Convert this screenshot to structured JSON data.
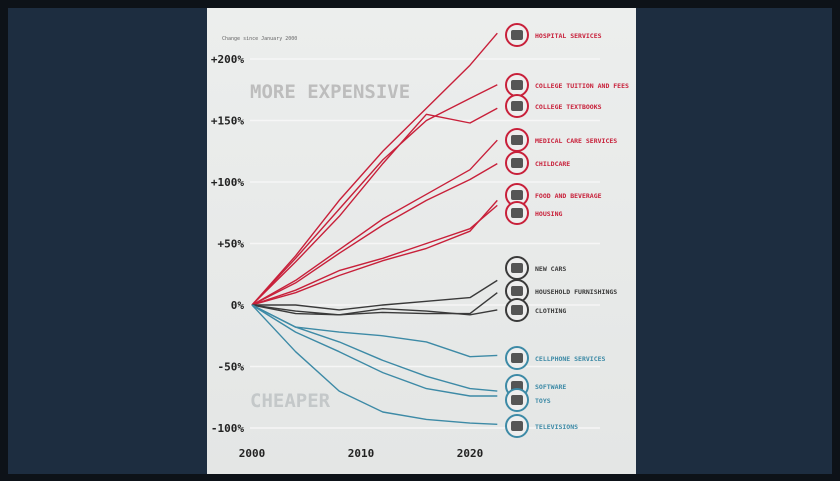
{
  "chart_data": {
    "type": "line",
    "note": "Change since January 2000",
    "annotations": {
      "top": "MORE EXPENSIVE",
      "bottom": "CHEAPER"
    },
    "ylim": [
      -100,
      225
    ],
    "yticks": [
      {
        "v": 200,
        "label": "+200%"
      },
      {
        "v": 150,
        "label": "+150%"
      },
      {
        "v": 100,
        "label": "+100%"
      },
      {
        "v": 50,
        "label": "+50%"
      },
      {
        "v": 0,
        "label": "0%"
      },
      {
        "v": -50,
        "label": "-50%"
      },
      {
        "v": -100,
        "label": "-100%"
      }
    ],
    "xticks": [
      {
        "v": 2000,
        "label": "2000"
      },
      {
        "v": 2010,
        "label": "2010"
      },
      {
        "v": 2020,
        "label": "2020"
      }
    ],
    "x": [
      2000,
      2004,
      2008,
      2012,
      2016,
      2020,
      2022.5
    ],
    "colors": {
      "up": "#c8203a",
      "flat": "#3a3a3a",
      "down": "#3d8aa6"
    },
    "series": [
      {
        "name": "HOSPITAL SERVICES",
        "group": "up",
        "icon": "hospital-icon",
        "values": [
          0,
          40,
          85,
          125,
          160,
          195,
          221
        ]
      },
      {
        "name": "COLLEGE TUITION AND FEES",
        "group": "up",
        "icon": "graduation-cap-icon",
        "values": [
          0,
          38,
          78,
          118,
          150,
          168,
          179
        ]
      },
      {
        "name": "COLLEGE TEXTBOOKS",
        "group": "up",
        "icon": "books-icon",
        "values": [
          0,
          35,
          72,
          115,
          155,
          148,
          160
        ]
      },
      {
        "name": "MEDICAL CARE SERVICES",
        "group": "up",
        "icon": "camera-icon",
        "values": [
          0,
          20,
          45,
          70,
          90,
          110,
          134
        ]
      },
      {
        "name": "CHILDCARE",
        "group": "up",
        "icon": "stroller-icon",
        "values": [
          0,
          18,
          42,
          65,
          85,
          102,
          115
        ]
      },
      {
        "name": "FOOD AND BEVERAGE",
        "group": "up",
        "icon": "food-icon",
        "values": [
          0,
          10,
          24,
          36,
          46,
          60,
          85
        ]
      },
      {
        "name": "HOUSING",
        "group": "up",
        "icon": "house-icon",
        "values": [
          0,
          12,
          28,
          38,
          50,
          62,
          81
        ]
      },
      {
        "name": "NEW CARS",
        "group": "flat",
        "icon": "car-icon",
        "values": [
          0,
          0,
          -4,
          0,
          3,
          6,
          20
        ]
      },
      {
        "name": "HOUSEHOLD FURNISHINGS",
        "group": "flat",
        "icon": "sofa-icon",
        "values": [
          0,
          -5,
          -8,
          -6,
          -7,
          -7,
          10
        ]
      },
      {
        "name": "CLOTHING",
        "group": "flat",
        "icon": "shirt-icon",
        "values": [
          0,
          -7,
          -8,
          -3,
          -5,
          -8,
          -4
        ]
      },
      {
        "name": "CELLPHONE SERVICES",
        "group": "down",
        "icon": "cellphone-icon",
        "values": [
          0,
          -18,
          -22,
          -25,
          -30,
          -42,
          -41
        ]
      },
      {
        "name": "SOFTWARE",
        "group": "down",
        "icon": "software-icon",
        "values": [
          0,
          -18,
          -30,
          -45,
          -58,
          -68,
          -70
        ]
      },
      {
        "name": "TOYS",
        "group": "down",
        "icon": "toy-icon",
        "values": [
          0,
          -22,
          -38,
          -55,
          -68,
          -74,
          -74
        ]
      },
      {
        "name": "TELEVISIONS",
        "group": "down",
        "icon": "television-icon",
        "values": [
          0,
          -38,
          -70,
          -87,
          -93,
          -96,
          -97
        ]
      }
    ]
  }
}
